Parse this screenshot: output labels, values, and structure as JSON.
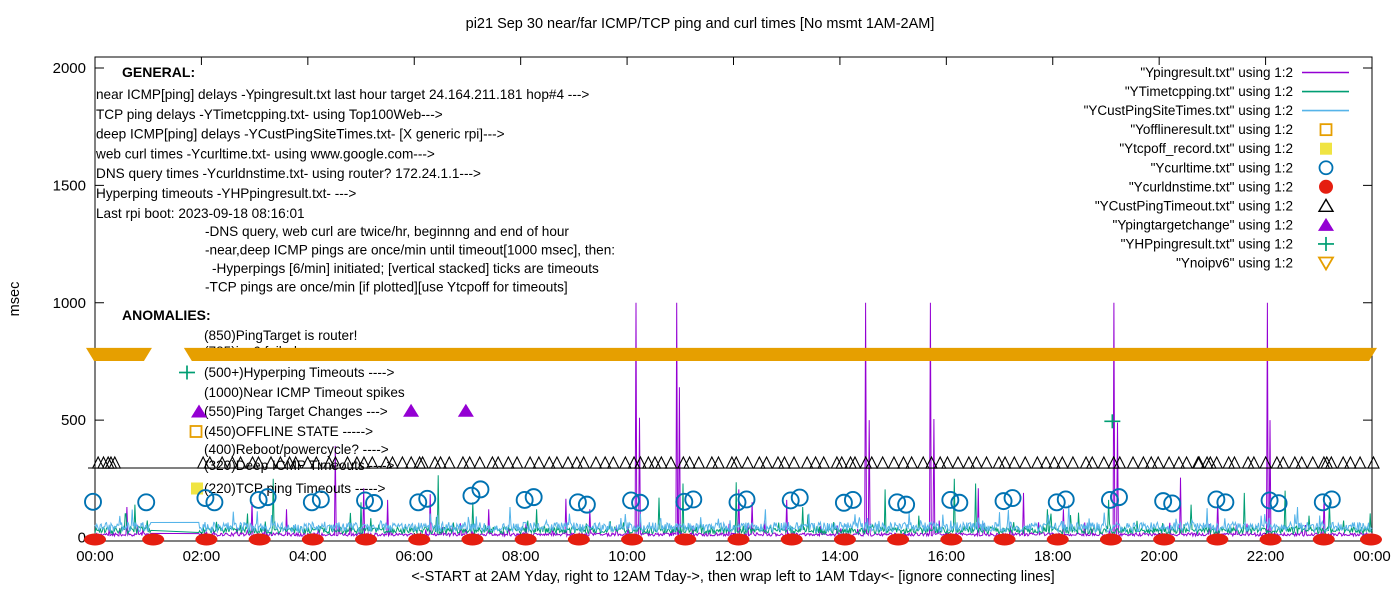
{
  "chart_data": {
    "type": "line+scatter time-series (gnuplot style)",
    "title": "pi21 Sep 30  near/far ICMP/TCP ping and curl times [No msmt 1AM-2AM]",
    "xlabel": "<-START at 2AM Yday, right to 12AM Tday->, then wrap left to 1AM Tday<- [ignore connecting lines]",
    "ylabel": "msec",
    "ylim": [
      0,
      2000
    ],
    "xlim_hours": [
      0,
      24
    ],
    "y_ticks": [
      0,
      500,
      1000,
      1500,
      2000
    ],
    "x_tick_labels": [
      "00:00",
      "02:00",
      "04:00",
      "06:00",
      "08:00",
      "10:00",
      "12:00",
      "14:00",
      "16:00",
      "18:00",
      "20:00",
      "22:00",
      "00:00"
    ],
    "measurement_gap_hours": [
      1.05,
      1.95
    ],
    "grid": false,
    "legend_position": "top-right",
    "legend": [
      {
        "label": "\"Ypingresult.txt\" using 1:2",
        "marker": "line",
        "color": "#9400d3"
      },
      {
        "label": "\"YTimetcpping.txt\" using 1:2",
        "marker": "line",
        "color": "#009e73"
      },
      {
        "label": "\"YCustPingSiteTimes.txt\" using 1:2",
        "marker": "line",
        "color": "#56b4e9"
      },
      {
        "label": "\"Yofflineresult.txt\" using 1:2",
        "marker": "open_square",
        "color": "#e69f00"
      },
      {
        "label": "\"Ytcpoff_record.txt\" using 1:2",
        "marker": "filled_square",
        "color": "#f0e442"
      },
      {
        "label": "\"Ycurltime.txt\" using 1:2",
        "marker": "open_circle",
        "color": "#0072b2"
      },
      {
        "label": "\"Ycurldnstime.txt\" using 1:2",
        "marker": "filled_circle",
        "color": "#e51e10"
      },
      {
        "label": "\"YCustPingTimeout.txt\" using 1:2",
        "marker": "open_triangle",
        "color": "#000000"
      },
      {
        "label": "\"Ypingtargetchange\" using 1:2",
        "marker": "filled_triangle",
        "color": "#9400d3"
      },
      {
        "label": "\"YHPpingresult.txt\" using 1:2",
        "marker": "plus",
        "color": "#009e73"
      },
      {
        "label": "\"Ynoipv6\" using 1:2",
        "marker": "open_triangle_down",
        "color": "#e69f00"
      }
    ],
    "series": [
      {
        "name": "near-icmp-ping",
        "style": "line",
        "color": "#9400d3",
        "noise": {
          "seed": 11,
          "base": 6,
          "amp": 14,
          "p": 0.96,
          "spike_amp": 60
        },
        "spikes": [
          [
            0.6,
            130
          ],
          [
            2.95,
            150
          ],
          [
            3.6,
            120
          ],
          [
            4.52,
            390
          ],
          [
            5.05,
            210
          ],
          [
            5.5,
            160
          ],
          [
            6.3,
            185
          ],
          [
            7.4,
            120
          ],
          [
            8.85,
            165
          ],
          [
            9.3,
            120
          ],
          [
            10.17,
            1000
          ],
          [
            10.23,
            510
          ],
          [
            10.94,
            1000
          ],
          [
            10.99,
            640
          ],
          [
            12.1,
            205
          ],
          [
            12.35,
            150
          ],
          [
            13.0,
            160
          ],
          [
            14.49,
            1000
          ],
          [
            14.55,
            500
          ],
          [
            15.7,
            1000
          ],
          [
            15.76,
            505
          ],
          [
            16.6,
            210
          ],
          [
            17.45,
            190
          ],
          [
            18.2,
            120
          ],
          [
            19.15,
            1000
          ],
          [
            19.21,
            490
          ],
          [
            20.4,
            255
          ],
          [
            21.1,
            160
          ],
          [
            22.03,
            1000
          ],
          [
            22.09,
            500
          ],
          [
            23.1,
            175
          ]
        ]
      },
      {
        "name": "tcp-ping",
        "style": "line",
        "color": "#009e73",
        "noise": {
          "seed": 7,
          "base": 16,
          "amp": 30,
          "p": 0.95,
          "spike_amp": 70
        },
        "spikes": [
          [
            0.75,
            140
          ],
          [
            3.35,
            250
          ],
          [
            5.0,
            150
          ],
          [
            6.45,
            265
          ],
          [
            7.1,
            150
          ],
          [
            8.3,
            120
          ],
          [
            10.6,
            170
          ],
          [
            11.05,
            230
          ],
          [
            12.05,
            235
          ],
          [
            13.3,
            130
          ],
          [
            14.85,
            205
          ],
          [
            16.15,
            250
          ],
          [
            16.55,
            230
          ],
          [
            17.9,
            120
          ],
          [
            19.05,
            160
          ],
          [
            20.6,
            140
          ],
          [
            21.6,
            190
          ],
          [
            22.37,
            200
          ],
          [
            23.2,
            150
          ]
        ]
      },
      {
        "name": "deep-icmp-ping",
        "style": "line",
        "color": "#56b4e9",
        "noise": {
          "seed": 3,
          "base": 24,
          "amp": 42,
          "p": 0.94,
          "spike_amp": 55
        },
        "spikes": [
          [
            2.6,
            110
          ],
          [
            7.8,
            130
          ],
          [
            12.6,
            120
          ],
          [
            15.3,
            110
          ],
          [
            18.3,
            140
          ],
          [
            20.9,
            125
          ],
          [
            22.6,
            130
          ]
        ]
      },
      {
        "name": "web-curl",
        "style": "hourly_circles",
        "color": "#0072b2",
        "radius": 8,
        "hourly_values": [
          [
            152,
            null
          ],
          [
            150,
            null
          ],
          [
            168,
            150
          ],
          [
            160,
            172
          ],
          [
            150,
            162
          ],
          [
            158,
            147
          ],
          [
            150,
            165
          ],
          [
            178,
            205
          ],
          [
            160,
            172
          ],
          [
            150,
            140
          ],
          [
            158,
            148
          ],
          [
            152,
            162
          ],
          [
            150,
            162
          ],
          [
            158,
            170
          ],
          [
            148,
            160
          ],
          [
            150,
            140
          ],
          [
            160,
            148
          ],
          [
            155,
            168
          ],
          [
            150,
            162
          ],
          [
            160,
            172
          ],
          [
            155,
            145
          ],
          [
            162,
            150
          ],
          [
            158,
            146
          ],
          [
            150,
            162
          ]
        ]
      },
      {
        "name": "dns-query",
        "style": "hourly_blobs",
        "color": "#e51e10",
        "value": 8
      },
      {
        "name": "cust-ping-timeout",
        "style": "triangle_row",
        "color": "#000000",
        "approx_value": 320,
        "base_value": 296,
        "tri_h": 11,
        "tri_hw": 5.5,
        "start": 0.04,
        "end": 24,
        "step": 0.18,
        "jitter": 0.05,
        "seed": 5,
        "gap": [
          0.52,
          1.9
        ],
        "extras": [
          0.16,
          0.3,
          6.1,
          10.4,
          14.2,
          20.75,
          20.9,
          23.15
        ]
      },
      {
        "name": "ping-target-change",
        "style": "filled_triangle",
        "color": "#9400d3",
        "points": [
          [
            5.94,
            540
          ],
          [
            6.97,
            540
          ]
        ]
      },
      {
        "name": "hyperping-timeouts",
        "style": "plus",
        "color": "#009e73",
        "points": [
          [
            19.12,
            495
          ]
        ]
      },
      {
        "name": "offline-state",
        "style": "open_square",
        "color": "#e69f00",
        "points": []
      },
      {
        "name": "tcp-offline-record",
        "style": "filled_square",
        "color": "#f0e442",
        "points": []
      },
      {
        "name": "no-ipv6-band",
        "style": "band",
        "color": "#e69f00",
        "v_top": 808,
        "v_bot": 752,
        "segments_hours": [
          [
            -0.17,
            1.07
          ],
          [
            1.67,
            24.1
          ]
        ]
      }
    ],
    "annotations": {
      "general": {
        "header": "GENERAL:",
        "lines": [
          "near ICMP[ping] delays -Ypingresult.txt last hour target 24.164.211.181 hop#4 --->",
          "TCP ping delays -YTimetcpping.txt- using Top100Web--->",
          "deep ICMP[ping] delays -YCustPingSiteTimes.txt- [X generic rpi]--->",
          "web curl times -Ycurltime.txt- using www.google.com--->",
          "DNS query times -Ycurldnstime.txt- using router? 172.24.1.1--->",
          "Hyperping timeouts -YHPpingresult.txt- --->",
          "Last rpi boot: 2023-09-18 08:16:01"
        ],
        "indent_lines": [
          "-DNS query, web curl are twice/hr, beginnng and end of hour",
          "-near,deep ICMP pings are once/min until timeout[1000 msec], then:",
          "-Hyperpings [6/min] initiated; [vertical stacked] ticks are timeouts",
          "-TCP pings are once/min [if plotted][use Ytcpoff for timeouts]"
        ]
      },
      "anomalies": {
        "header": "ANOMALIES:",
        "items": [
          {
            "text": "(850)PingTarget is router!",
            "icon": null,
            "icon_color": null
          },
          {
            "text": "(785)ipv6 failed ->",
            "icon": null,
            "icon_color": null
          },
          {
            "text": "(500+)Hyperping Timeouts ---->",
            "icon": "plus",
            "icon_color": "#009e73"
          },
          {
            "text": "(1000)Near ICMP Timeout spikes",
            "icon": null,
            "icon_color": null
          },
          {
            "text": "(550)Ping Target Changes --->",
            "icon": "filled_triangle",
            "icon_color": "#9400d3"
          },
          {
            "text": "(450)OFFLINE STATE ----->",
            "icon": "open_square",
            "icon_color": "#e69f00"
          },
          {
            "text": "(400)Reboot/powercycle? ---->",
            "icon": null,
            "icon_color": null
          },
          {
            "text": "(320)Deep ICMP Timeouts ---->",
            "icon": null,
            "icon_color": null
          },
          {
            "text": "(220)TCP ping Timeouts ----->",
            "icon": "filled_square",
            "icon_color": "#f0e442"
          }
        ]
      }
    }
  }
}
